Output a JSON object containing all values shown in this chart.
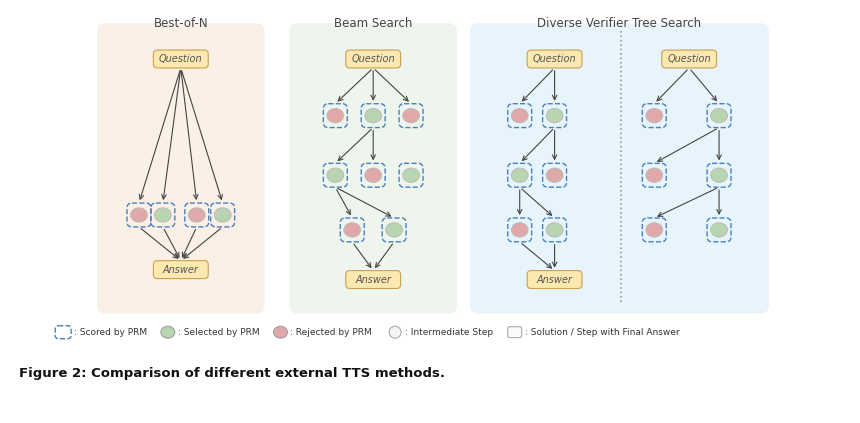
{
  "bg_color": "#ffffff",
  "section_bg_colors": [
    "#faf0e6",
    "#edf5ec",
    "#e8f4fb"
  ],
  "section_titles": [
    "Best-of-N",
    "Beam Search",
    "Diverse Verifier Tree Search"
  ],
  "question_box_color": "#fde9b0",
  "answer_box_color": "#fde9b0",
  "dashed_box_color": "#4a7fc1",
  "green_circle_color": "#b8d4b0",
  "pink_circle_color": "#e0a8a8",
  "white_circle_color": "#f5f5f5",
  "arrow_color": "#444444",
  "divider_color": "#999999",
  "figure_caption": "Figure 2: Comparison of different external TTS methods.",
  "font_size_title": 8.5,
  "font_size_node": 7.0,
  "font_size_legend": 6.5,
  "font_size_caption": 9.5
}
